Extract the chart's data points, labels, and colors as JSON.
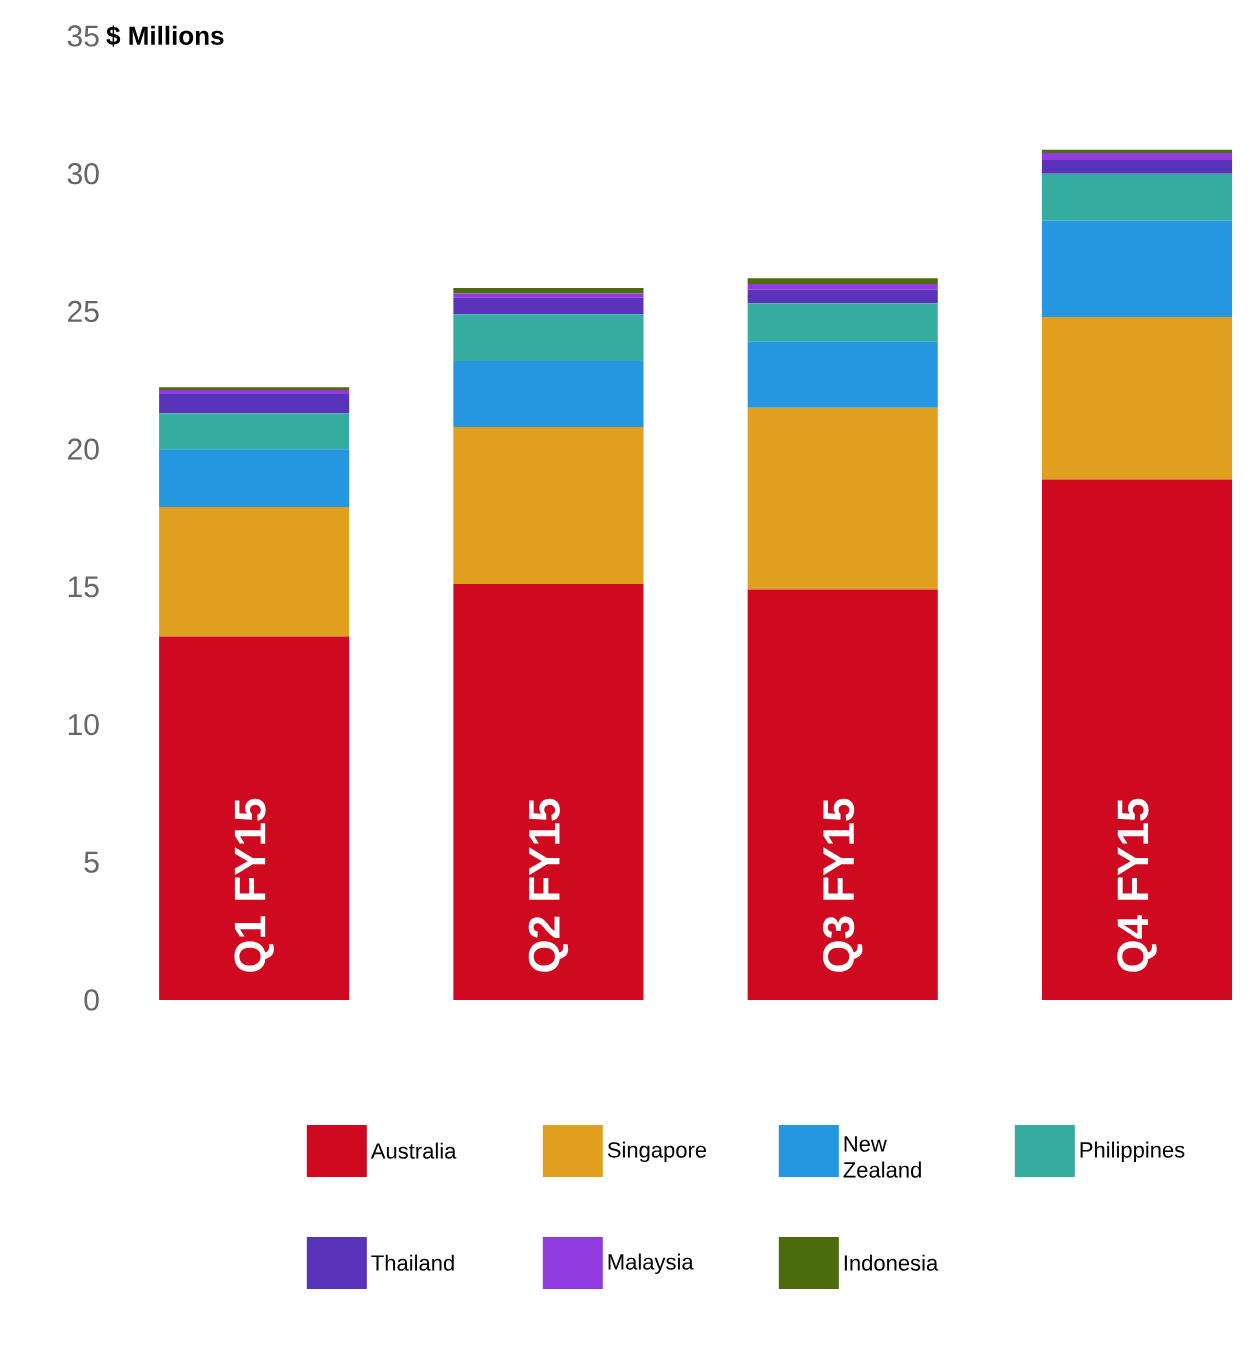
{
  "chart_data": {
    "type": "bar",
    "stacked": true,
    "ylabel": "$ Millions",
    "categories": [
      "Q1 FY15",
      "Q2 FY15",
      "Q3 FY15",
      "Q4 FY15"
    ],
    "series": [
      {
        "name": "Australia",
        "color": "#cf0a20",
        "values": [
          13.2,
          15.1,
          14.9,
          18.9
        ]
      },
      {
        "name": "Singapore",
        "color": "#e19f20",
        "values": [
          4.7,
          5.7,
          6.6,
          5.9
        ]
      },
      {
        "name": "New Zealand",
        "color": "#2596e0",
        "values": [
          2.1,
          2.4,
          2.4,
          3.5
        ]
      },
      {
        "name": "Philippines",
        "color": "#36ab9f",
        "values": [
          1.3,
          1.7,
          1.4,
          1.7
        ]
      },
      {
        "name": "Thailand",
        "color": "#5933b9",
        "values": [
          0.7,
          0.6,
          0.5,
          0.5
        ]
      },
      {
        "name": "Malaysia",
        "color": "#8f3be0",
        "values": [
          0.15,
          0.15,
          0.2,
          0.25
        ]
      },
      {
        "name": "Indonesia",
        "color": "#4b6b0c",
        "values": [
          0.1,
          0.2,
          0.2,
          0.12
        ]
      }
    ],
    "ylim": [
      0,
      35
    ],
    "yticks": [
      0,
      5,
      10,
      15,
      20,
      25,
      30,
      35
    ],
    "grid": false,
    "legend": "bottom"
  }
}
